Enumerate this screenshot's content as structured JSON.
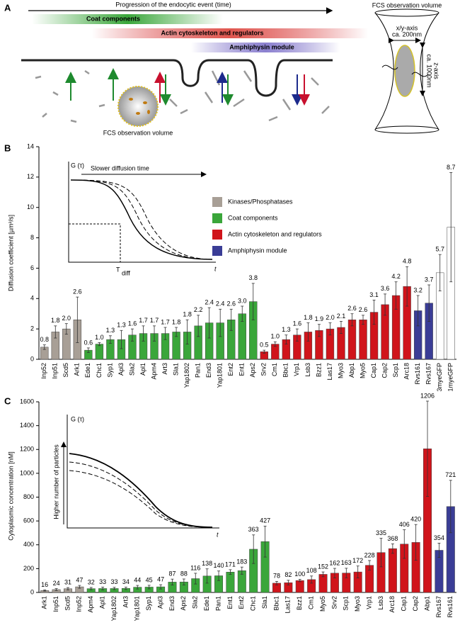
{
  "panel_a": {
    "letter": "A",
    "timeline": "Progression of the endocytic event (time)",
    "coat": "Coat components",
    "actin": "Actin cytoskeleton and regulators",
    "amphiphysin": "Amphiphysin module",
    "volume_label": "FCS observation volume",
    "volume_title": "FCS observation volume",
    "xy_axis": "x/y-axis",
    "xy_size": "ca. 200nm",
    "z_size": "ca. 1000nm",
    "z_axis": "z-axis"
  },
  "chart_data": [
    {
      "type": "bar",
      "letter": "B",
      "ylabel": "Diffusion coefficient [µm²/s]",
      "ylim": [
        0,
        14
      ],
      "yticks": [
        0,
        2,
        4,
        6,
        8,
        10,
        12,
        14
      ],
      "categories": [
        "Inp52",
        "Inp51",
        "Scd5",
        "Ark1",
        "Ede1",
        "Chc1",
        "Syp1",
        "Apl3",
        "Sla2",
        "Apl1",
        "Apm4",
        "Art3",
        "Sla1",
        "Yap1802",
        "Pan1",
        "End3",
        "Yap1801",
        "Ent2",
        "Ent1",
        "Aps2",
        "Srv2",
        "Cm1",
        "Bbc1",
        "Vrp1",
        "Lsb3",
        "Bzz1",
        "Las17",
        "Myo3",
        "Abp1",
        "Myo5",
        "Cap1",
        "Cap2",
        "Scp1",
        "Arc18",
        "Rvs161",
        "Rvs167",
        "3myeGFP",
        "1myeGFP"
      ],
      "values": [
        0.8,
        1.8,
        2.0,
        2.6,
        0.6,
        1.0,
        1.3,
        1.3,
        1.6,
        1.7,
        1.7,
        1.7,
        1.8,
        1.8,
        2.2,
        2.4,
        2.4,
        2.6,
        3.0,
        3.8,
        0.5,
        1.0,
        1.3,
        1.6,
        1.8,
        1.9,
        2.0,
        2.1,
        2.6,
        2.6,
        3.1,
        3.6,
        4.2,
        4.8,
        3.2,
        3.7,
        5.7,
        8.7
      ],
      "value_labels": [
        "0.8",
        "1.8",
        "2.0",
        "2.6",
        "0.6",
        "1.0",
        "1.3",
        "1.3",
        "1.6",
        "1.7",
        "1.7",
        "1.7",
        "1.8",
        "1.8",
        "2.2",
        "2.4",
        "2.4",
        "2.6",
        "3.0",
        "3.8",
        "0.5",
        "1.0",
        "1.3",
        "1.6",
        "1.8",
        "1.9",
        "2.0",
        "2.1",
        "2.6",
        "2.6",
        "3.1",
        "3.6",
        "4.2",
        "4.8",
        "3.2",
        "3.7",
        "5.7",
        "8.7"
      ],
      "errors": [
        0.15,
        0.4,
        0.35,
        1.5,
        0.15,
        0.1,
        0.25,
        0.6,
        0.4,
        0.5,
        0.5,
        0.4,
        0.3,
        0.8,
        0.7,
        1.0,
        0.9,
        0.7,
        0.5,
        1.2,
        0.1,
        0.15,
        0.3,
        0.4,
        0.6,
        0.4,
        0.4,
        0.4,
        0.4,
        0.3,
        0.8,
        0.7,
        0.9,
        1.3,
        1.0,
        1.2,
        1.2,
        3.6
      ],
      "colors": [
        "#a89f96",
        "#a89f96",
        "#a89f96",
        "#a89f96",
        "#3aa63a",
        "#3aa63a",
        "#3aa63a",
        "#3aa63a",
        "#3aa63a",
        "#3aa63a",
        "#3aa63a",
        "#3aa63a",
        "#3aa63a",
        "#3aa63a",
        "#3aa63a",
        "#3aa63a",
        "#3aa63a",
        "#3aa63a",
        "#3aa63a",
        "#3aa63a",
        "#d0141b",
        "#d0141b",
        "#d0141b",
        "#d0141b",
        "#d0141b",
        "#d0141b",
        "#d0141b",
        "#d0141b",
        "#d0141b",
        "#d0141b",
        "#d0141b",
        "#d0141b",
        "#d0141b",
        "#d0141b",
        "#3a3d96",
        "#3a3d96",
        "#ffffff",
        "#ffffff"
      ],
      "legend": [
        {
          "name": "Kinases/Phosphatases",
          "color": "#a89f96"
        },
        {
          "name": "Coat components",
          "color": "#3aa63a"
        },
        {
          "name": "Actin cytoskeleton and regulators",
          "color": "#d0141b"
        },
        {
          "name": "Amphiphysin module",
          "color": "#3a3d96"
        }
      ],
      "inset": {
        "y_label": "G (τ)",
        "arrow_label": "Slower diffusion time",
        "marker_label": "T",
        "marker_subscript": "diff",
        "x_label": "t"
      }
    },
    {
      "type": "bar",
      "letter": "C",
      "ylabel": "Cytoplasmic concentration [nM]",
      "ylim": [
        0,
        1600
      ],
      "yticks": [
        0,
        200,
        400,
        600,
        800,
        1000,
        1200,
        1400,
        1600
      ],
      "categories": [
        "Ark1",
        "Inp51",
        "Scd5",
        "Inp52",
        "Apm4",
        "Apl1",
        "Yap1802",
        "Art3",
        "Yap1801",
        "Syp1",
        "Apl3",
        "End3",
        "Aps2",
        "Sla2",
        "Ede1",
        "Pan1",
        "Ent1",
        "Ent2",
        "Chc1",
        "Sla1",
        "Bbc1",
        "Las17",
        "Bzz1",
        "Cm1",
        "Myo5",
        "Srv2",
        "Scp1",
        "Myo3",
        "Vrp1",
        "Lsb3",
        "Arc18",
        "Cap1",
        "Cap2",
        "Abp1",
        "Rvs167",
        "Rvs161"
      ],
      "values": [
        16,
        24,
        31,
        47,
        32,
        33,
        33,
        34,
        44,
        45,
        47,
        87,
        88,
        116,
        138,
        140,
        171,
        183,
        363,
        427,
        78,
        82,
        100,
        108,
        152,
        162,
        163,
        172,
        228,
        335,
        368,
        406,
        420,
        1206,
        354,
        721
      ],
      "errors": [
        5,
        8,
        10,
        12,
        10,
        12,
        10,
        10,
        15,
        15,
        18,
        25,
        25,
        45,
        60,
        40,
        20,
        30,
        120,
        130,
        15,
        20,
        10,
        30,
        20,
        40,
        40,
        50,
        40,
        120,
        40,
        120,
        150,
        400,
        60,
        220
      ],
      "colors": [
        "#a89f96",
        "#a89f96",
        "#a89f96",
        "#a89f96",
        "#3aa63a",
        "#3aa63a",
        "#3aa63a",
        "#3aa63a",
        "#3aa63a",
        "#3aa63a",
        "#3aa63a",
        "#3aa63a",
        "#3aa63a",
        "#3aa63a",
        "#3aa63a",
        "#3aa63a",
        "#3aa63a",
        "#3aa63a",
        "#3aa63a",
        "#3aa63a",
        "#d0141b",
        "#d0141b",
        "#d0141b",
        "#d0141b",
        "#d0141b",
        "#d0141b",
        "#d0141b",
        "#d0141b",
        "#d0141b",
        "#d0141b",
        "#d0141b",
        "#d0141b",
        "#d0141b",
        "#d0141b",
        "#3a3d96",
        "#3a3d96"
      ],
      "inset": {
        "y_label": "G (τ)",
        "arrow_label": "Higher number of particles",
        "x_label": "t"
      }
    }
  ]
}
